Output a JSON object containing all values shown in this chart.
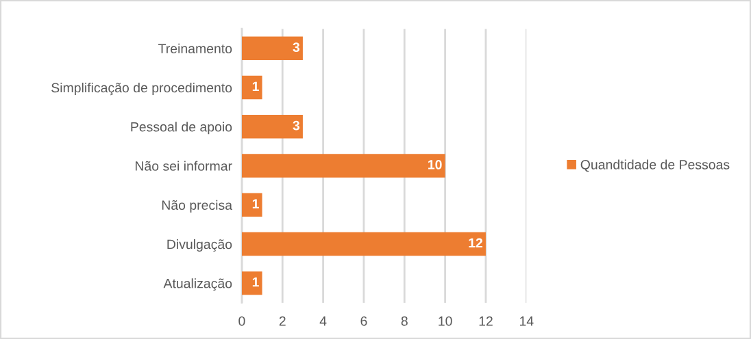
{
  "chart_data": {
    "type": "bar",
    "orientation": "horizontal",
    "categories": [
      "Treinamento",
      "Simplificação de procedimento",
      "Pessoal de apoio",
      "Não sei informar",
      "Não precisa",
      "Divulgação",
      "Atualização"
    ],
    "series": [
      {
        "name": "Quandtidade de Pessoas",
        "color": "#ed7d31",
        "values": [
          3,
          1,
          3,
          10,
          1,
          12,
          1
        ]
      }
    ],
    "xlim": [
      0,
      14
    ],
    "xticks": [
      0,
      2,
      4,
      6,
      8,
      10,
      12,
      14
    ],
    "grid": "x",
    "legend": "right",
    "data_labels": true
  }
}
